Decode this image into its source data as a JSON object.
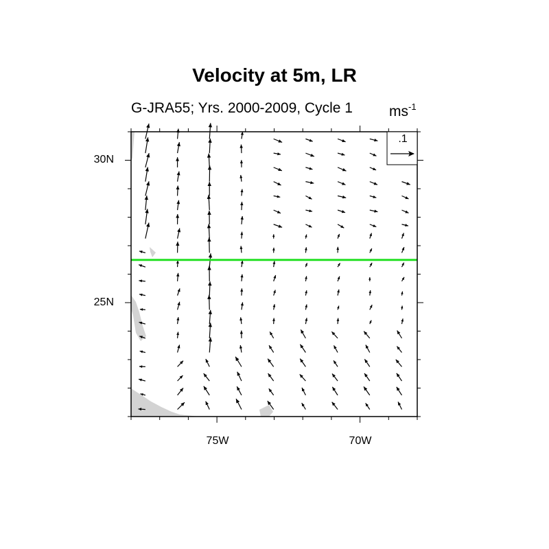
{
  "chart_data": {
    "type": "vector-field",
    "title": "Velocity at 5m, LR",
    "subtitle": "G-JRA55; Yrs. 2000-2009, Cycle 1",
    "units": "ms",
    "units_exponent": "-1",
    "reference_vector_label": ".1",
    "xlim": [
      -78,
      -68
    ],
    "ylim": [
      21,
      31
    ],
    "x_ticks": [
      {
        "value": -75,
        "label": "75W"
      },
      {
        "value": -70,
        "label": "70W"
      }
    ],
    "y_ticks": [
      {
        "value": 25,
        "label": "25N"
      },
      {
        "value": 30,
        "label": "30N"
      }
    ],
    "reference_line": {
      "lat": 26.5,
      "color": "#22e022"
    },
    "land_color": "#d3d3d3",
    "arrow_color": "#000000",
    "frame_color": "#000000",
    "frame": {
      "lon_min": -78,
      "lon_max": -68,
      "lat_min": 21,
      "lat_max": 31
    }
  }
}
